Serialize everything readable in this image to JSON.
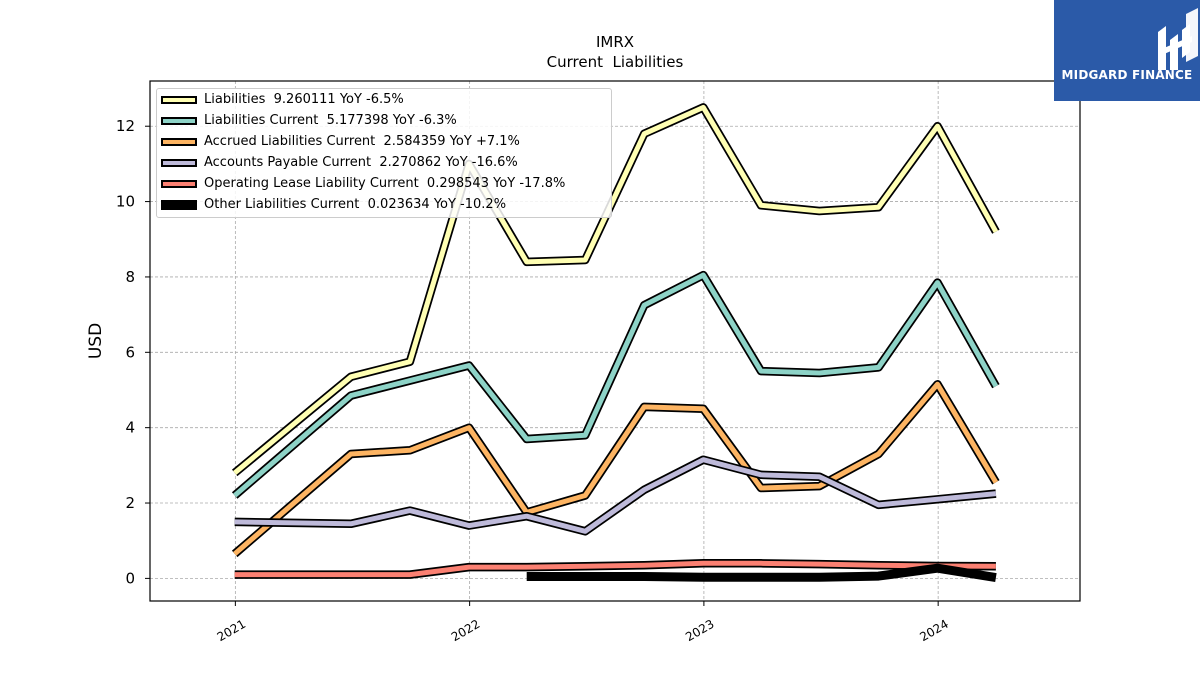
{
  "chart_data": {
    "type": "line",
    "title": "IMRX",
    "subtitle": "Current  Liabilities",
    "ylabel": "USD",
    "xlabel": "",
    "ylim": [
      -0.6,
      13.2
    ],
    "xlim": [
      "2020-08-21",
      "2024-08-09"
    ],
    "grid": true,
    "legend_position": "top-left",
    "x_ticks": [
      "2021-01-01",
      "2022-01-01",
      "2023-01-01",
      "2024-01-01"
    ],
    "x_tick_labels": [
      "2021",
      "2022",
      "2023",
      "2024"
    ],
    "y_ticks": [
      0,
      2,
      4,
      6,
      8,
      10,
      12
    ],
    "y_tick_labels": [
      "0",
      "2",
      "4",
      "6",
      "8",
      "10",
      "12"
    ],
    "series": [
      {
        "name": "Liabilities",
        "legend": "Liabilities  9.260111 YoY -6.5%",
        "color": "#ffffb3",
        "x": [
          "2020-12-31",
          "2021-06-30",
          "2021-09-30",
          "2021-12-31",
          "2022-03-31",
          "2022-06-30",
          "2022-09-30",
          "2022-12-31",
          "2023-03-31",
          "2023-06-30",
          "2023-09-30",
          "2023-12-31",
          "2024-03-31"
        ],
        "values": [
          2.8,
          5.35,
          5.75,
          11.0,
          8.4,
          8.45,
          11.8,
          12.5,
          9.9,
          9.75,
          9.85,
          12.0,
          9.2
        ]
      },
      {
        "name": "Liabilities Current",
        "legend": "Liabilities Current  5.177398 YoY -6.3%",
        "color": "#8dd3c7",
        "x": [
          "2020-12-31",
          "2021-06-30",
          "2021-09-30",
          "2021-12-31",
          "2022-03-31",
          "2022-06-30",
          "2022-09-30",
          "2022-12-31",
          "2023-03-31",
          "2023-06-30",
          "2023-09-30",
          "2023-12-31",
          "2024-03-31"
        ],
        "values": [
          2.2,
          4.85,
          5.25,
          5.65,
          3.7,
          3.8,
          7.25,
          8.05,
          5.5,
          5.45,
          5.6,
          7.85,
          5.1
        ]
      },
      {
        "name": "Accrued Liabilities Current",
        "legend": "Accrued Liabilities Current  2.584359 YoY +7.1%",
        "color": "#fdb462",
        "x": [
          "2020-12-31",
          "2021-06-30",
          "2021-09-30",
          "2021-12-31",
          "2022-03-31",
          "2022-06-30",
          "2022-09-30",
          "2022-12-31",
          "2023-03-31",
          "2023-06-30",
          "2023-09-30",
          "2023-12-31",
          "2024-03-31"
        ],
        "values": [
          0.65,
          3.3,
          3.4,
          4.0,
          1.75,
          2.2,
          4.55,
          4.5,
          2.4,
          2.45,
          3.3,
          5.15,
          2.55
        ]
      },
      {
        "name": "Accounts Payable Current",
        "legend": "Accounts Payable Current  2.270862 YoY -16.6%",
        "color": "#bebada",
        "x": [
          "2020-12-31",
          "2021-06-30",
          "2021-09-30",
          "2021-12-31",
          "2022-03-31",
          "2022-06-30",
          "2022-09-30",
          "2022-12-31",
          "2023-03-31",
          "2023-06-30",
          "2023-09-30",
          "2023-12-31",
          "2024-03-31"
        ],
        "values": [
          1.5,
          1.45,
          1.8,
          1.4,
          1.65,
          1.25,
          2.35,
          3.15,
          2.75,
          2.7,
          1.95,
          2.1,
          2.25
        ]
      },
      {
        "name": "Operating Lease Liability Current",
        "legend": "Operating Lease Liability Current  0.298543 YoY -17.8%",
        "color": "#fb8072",
        "x": [
          "2020-12-31",
          "2021-06-30",
          "2021-09-30",
          "2021-12-31",
          "2022-03-31",
          "2022-06-30",
          "2022-09-30",
          "2022-12-31",
          "2023-03-31",
          "2023-06-30",
          "2023-09-30",
          "2023-12-31",
          "2024-03-31"
        ],
        "values": [
          0.1,
          0.1,
          0.1,
          0.3,
          0.3,
          0.32,
          0.35,
          0.4,
          0.4,
          0.38,
          0.35,
          0.33,
          0.32
        ]
      },
      {
        "name": "Other Liabilities Current",
        "legend": "Other Liabilities Current  0.023634 YoY -10.2%",
        "color": "#000000",
        "x": [
          "2022-03-31",
          "2022-06-30",
          "2022-09-30",
          "2022-12-31",
          "2023-03-31",
          "2023-06-30",
          "2023-09-30",
          "2023-12-31",
          "2024-03-31"
        ],
        "values": [
          0.05,
          0.05,
          0.05,
          0.03,
          0.03,
          0.03,
          0.06,
          0.27,
          0.02
        ]
      }
    ]
  },
  "logo": {
    "text": "MIDGARD FINANCE",
    "bg": "#2b5aa8",
    "fg": "#ffffff"
  }
}
